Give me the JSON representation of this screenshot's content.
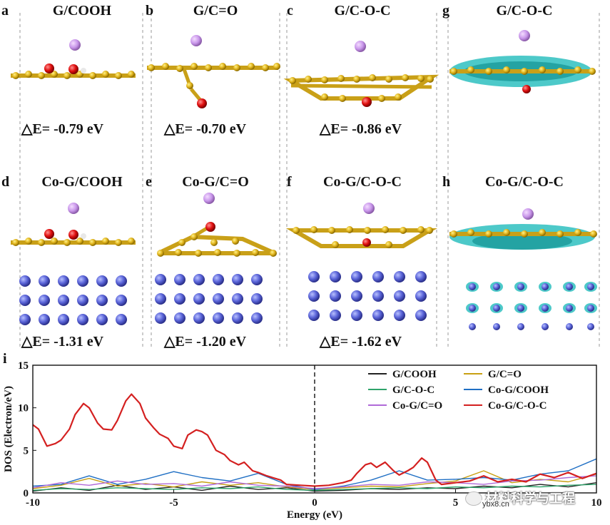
{
  "panels": [
    {
      "label": "a",
      "title": "G/COOH",
      "energy": "△E= -0.79 eV"
    },
    {
      "label": "b",
      "title": "G/C=O",
      "energy": "△E= -0.70 eV"
    },
    {
      "label": "c",
      "title": "G/C-O-C",
      "energy": "△E= -0.86 eV"
    },
    {
      "label": "g",
      "title": "G/C-O-C",
      "energy": ""
    },
    {
      "label": "d",
      "title": "Co-G/COOH",
      "energy": "△E= -1.31 eV"
    },
    {
      "label": "e",
      "title": "Co-G/C=O",
      "energy": "△E= -1.20 eV"
    },
    {
      "label": "f",
      "title": "Co-G/C-O-C",
      "energy": "△E= -1.62 eV"
    },
    {
      "label": "h",
      "title": "Co-G/C-O-C",
      "energy": ""
    }
  ],
  "chart_data": {
    "type": "line",
    "panel_label": "i",
    "xlabel": "Energy (eV)",
    "ylabel": "DOS (Electron/eV)",
    "xlim": [
      -10,
      10
    ],
    "ylim": [
      0,
      15
    ],
    "xticks": [
      "-10",
      "-5",
      "0",
      "5",
      "10"
    ],
    "yticks": [
      "0",
      "5",
      "10",
      "15"
    ],
    "fermi_line_x": 0,
    "legend_position": "top-right",
    "series": [
      {
        "name": "G/COOH",
        "color": "#222222",
        "x": [
          -10,
          -9,
          -8,
          -7,
          -6,
          -5,
          -4,
          -3,
          -2,
          -1,
          0,
          1,
          2,
          3,
          4,
          5,
          6,
          7,
          8,
          9,
          10
        ],
        "y": [
          0.2,
          0.6,
          0.3,
          0.9,
          0.4,
          0.7,
          0.3,
          0.8,
          0.4,
          0.6,
          0.2,
          0.3,
          0.5,
          0.4,
          0.6,
          0.5,
          0.8,
          0.6,
          1.0,
          0.7,
          1.2
        ]
      },
      {
        "name": "G/C=O",
        "color": "#c8a012",
        "x": [
          -10,
          -9,
          -8,
          -7,
          -6,
          -5,
          -4,
          -3,
          -2,
          -1,
          0,
          1,
          2,
          3,
          4,
          5,
          6,
          7,
          8,
          9,
          10
        ],
        "y": [
          0.5,
          0.9,
          1.7,
          0.8,
          1.1,
          0.7,
          1.3,
          0.9,
          1.2,
          0.7,
          0.4,
          0.6,
          0.8,
          0.7,
          1.1,
          1.4,
          2.6,
          1.2,
          1.6,
          1.3,
          2.2
        ]
      },
      {
        "name": "G/C-O-C",
        "color": "#2ea36a",
        "x": [
          -10,
          -9,
          -8,
          -7,
          -6,
          -5,
          -4,
          -3,
          -2,
          -1,
          0,
          1,
          2,
          3,
          4,
          5,
          6,
          7,
          8,
          9,
          10
        ],
        "y": [
          0.3,
          0.5,
          0.4,
          0.6,
          0.5,
          0.4,
          0.6,
          0.5,
          0.7,
          0.4,
          0.3,
          0.4,
          0.5,
          0.6,
          0.5,
          0.7,
          0.6,
          0.8,
          0.7,
          0.9,
          1.0
        ]
      },
      {
        "name": "Co-G/COOH",
        "color": "#1f6fc4",
        "x": [
          -10,
          -9,
          -8,
          -7,
          -6,
          -5,
          -4,
          -3,
          -2,
          -1,
          0,
          1,
          2,
          3,
          4,
          5,
          6,
          7,
          8,
          9,
          10
        ],
        "y": [
          0.8,
          1.0,
          2.0,
          1.0,
          1.6,
          2.5,
          1.8,
          1.4,
          2.3,
          1.0,
          0.4,
          0.8,
          1.5,
          2.6,
          1.5,
          1.6,
          1.8,
          1.5,
          2.2,
          2.6,
          4.0
        ]
      },
      {
        "name": "Co-G/C=O",
        "color": "#b06ad8",
        "x": [
          -10,
          -9,
          -8,
          -7,
          -6,
          -5,
          -4,
          -3,
          -2,
          -1,
          0,
          1,
          2,
          3,
          4,
          5,
          6,
          7,
          8,
          9,
          10
        ],
        "y": [
          0.6,
          1.2,
          0.9,
          1.4,
          1.0,
          1.1,
          0.8,
          1.3,
          0.9,
          0.8,
          0.5,
          0.7,
          1.0,
          0.9,
          1.3,
          1.2,
          1.0,
          1.4,
          1.5,
          1.8,
          2.0
        ]
      },
      {
        "name": "Co-G/C-O-C",
        "color": "#d42020",
        "x": [
          -10,
          -9.8,
          -9.5,
          -9.2,
          -9,
          -8.7,
          -8.5,
          -8.2,
          -8,
          -7.7,
          -7.5,
          -7.2,
          -7,
          -6.7,
          -6.5,
          -6.2,
          -6,
          -5.7,
          -5.5,
          -5.2,
          -5,
          -4.7,
          -4.5,
          -4.2,
          -4,
          -3.8,
          -3.5,
          -3.2,
          -3,
          -2.7,
          -2.5,
          -2.2,
          -2,
          -1.7,
          -1.5,
          -1.2,
          -1,
          -0.5,
          0,
          0.5,
          1,
          1.3,
          1.5,
          1.8,
          2,
          2.2,
          2.5,
          2.8,
          3,
          3.3,
          3.5,
          3.8,
          4,
          4.3,
          4.5,
          5,
          5.5,
          6,
          6.5,
          7,
          7.5,
          8,
          8.5,
          9,
          9.5,
          10
        ],
        "y": [
          8.0,
          7.5,
          5.5,
          5.8,
          6.2,
          7.5,
          9.2,
          10.5,
          10.0,
          8.2,
          7.5,
          7.4,
          8.5,
          10.8,
          11.6,
          10.5,
          8.8,
          7.6,
          6.9,
          6.4,
          5.5,
          5.2,
          6.8,
          7.4,
          7.2,
          6.8,
          5.0,
          4.5,
          3.8,
          3.3,
          3.6,
          2.6,
          2.4,
          2.0,
          1.8,
          1.5,
          1.0,
          0.9,
          0.8,
          0.9,
          1.2,
          1.5,
          2.3,
          3.3,
          3.5,
          3.0,
          3.6,
          2.6,
          2.1,
          2.6,
          3.0,
          4.1,
          3.6,
          1.5,
          1.0,
          1.2,
          1.4,
          2.0,
          1.3,
          1.6,
          1.3,
          2.2,
          1.8,
          2.4,
          1.7,
          2.3
        ]
      }
    ]
  },
  "watermark": {
    "channel": "材料科学与工程",
    "site": "ybx8.cn"
  }
}
